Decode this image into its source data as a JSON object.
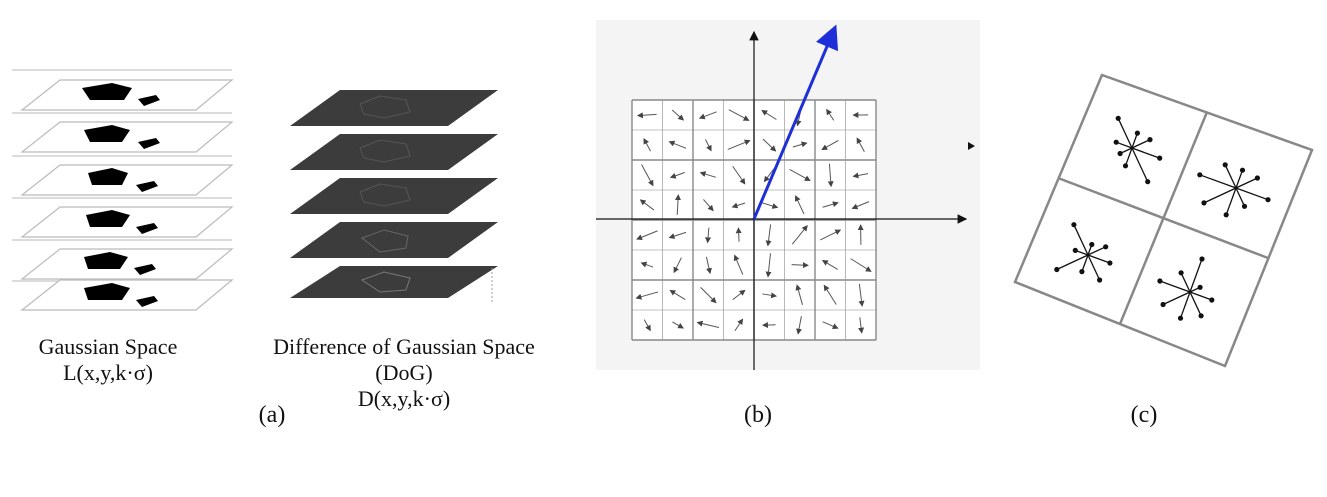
{
  "panel_a": {
    "gaussian_caption": {
      "line1": "Gaussian Space",
      "line2": "L(x,y,k·σ)"
    },
    "dog_caption": {
      "line1": "Difference of Gaussian Space",
      "line2": "(DoG)",
      "line3": "D(x,y,k·σ)"
    },
    "label": "(a)"
  },
  "panel_b": {
    "label": "(b)",
    "grid_cols": 8,
    "grid_rows": 8,
    "dominant_orientation": "blue"
  },
  "panel_c": {
    "label": "(c)"
  },
  "colors": {
    "arrow_blue": "#1f2fd8",
    "dog_layer": "#3c3c3c",
    "grid": "#888888"
  }
}
